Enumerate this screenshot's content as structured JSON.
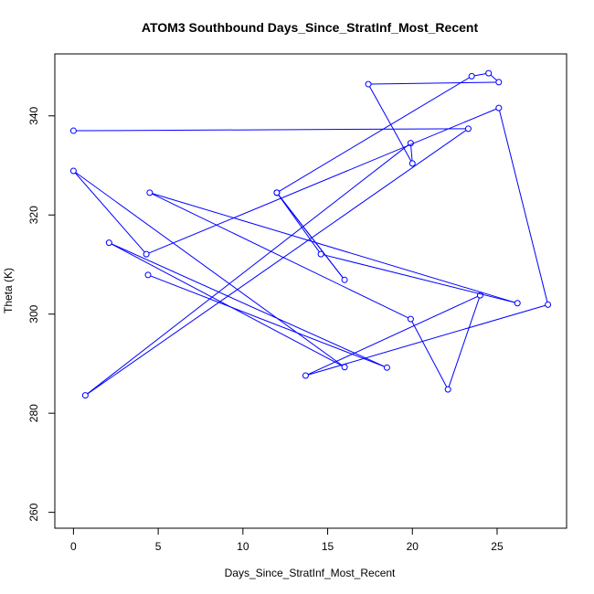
{
  "chart_data": {
    "type": "line",
    "title": "ATOM3 Southbound Days_Since_StratInf_Most_Recent",
    "xlabel": "Days_Since_StratInf_Most_Recent",
    "ylabel": "Theta (K)",
    "xlim": [
      -1.1,
      29.1
    ],
    "ylim": [
      256.8,
      352.5
    ],
    "xticks": [
      0,
      5,
      10,
      15,
      20,
      25
    ],
    "yticks": [
      260,
      280,
      300,
      320,
      340
    ],
    "series_color": "#0000ff",
    "marker": "open-circle",
    "grid": false,
    "series": [
      {
        "x": [
          0.0,
          23.3,
          0.7,
          19.9,
          20.0,
          17.4,
          25.1,
          24.5,
          23.5,
          12.0,
          16.0,
          12.0,
          14.6,
          26.2,
          4.5,
          19.9,
          22.1,
          24.0,
          13.7,
          28.0,
          25.1,
          4.3,
          0.0,
          16.0,
          2.1,
          18.5,
          4.4
        ],
        "y": [
          337.0,
          337.4,
          283.6,
          334.5,
          330.4,
          346.4,
          346.8,
          348.6,
          348.0,
          324.5,
          306.9,
          324.5,
          312.1,
          302.2,
          324.5,
          299.0,
          284.8,
          303.8,
          287.6,
          301.9,
          341.6,
          312.1,
          328.9,
          289.3,
          314.4,
          289.2,
          307.9
        ]
      }
    ]
  }
}
